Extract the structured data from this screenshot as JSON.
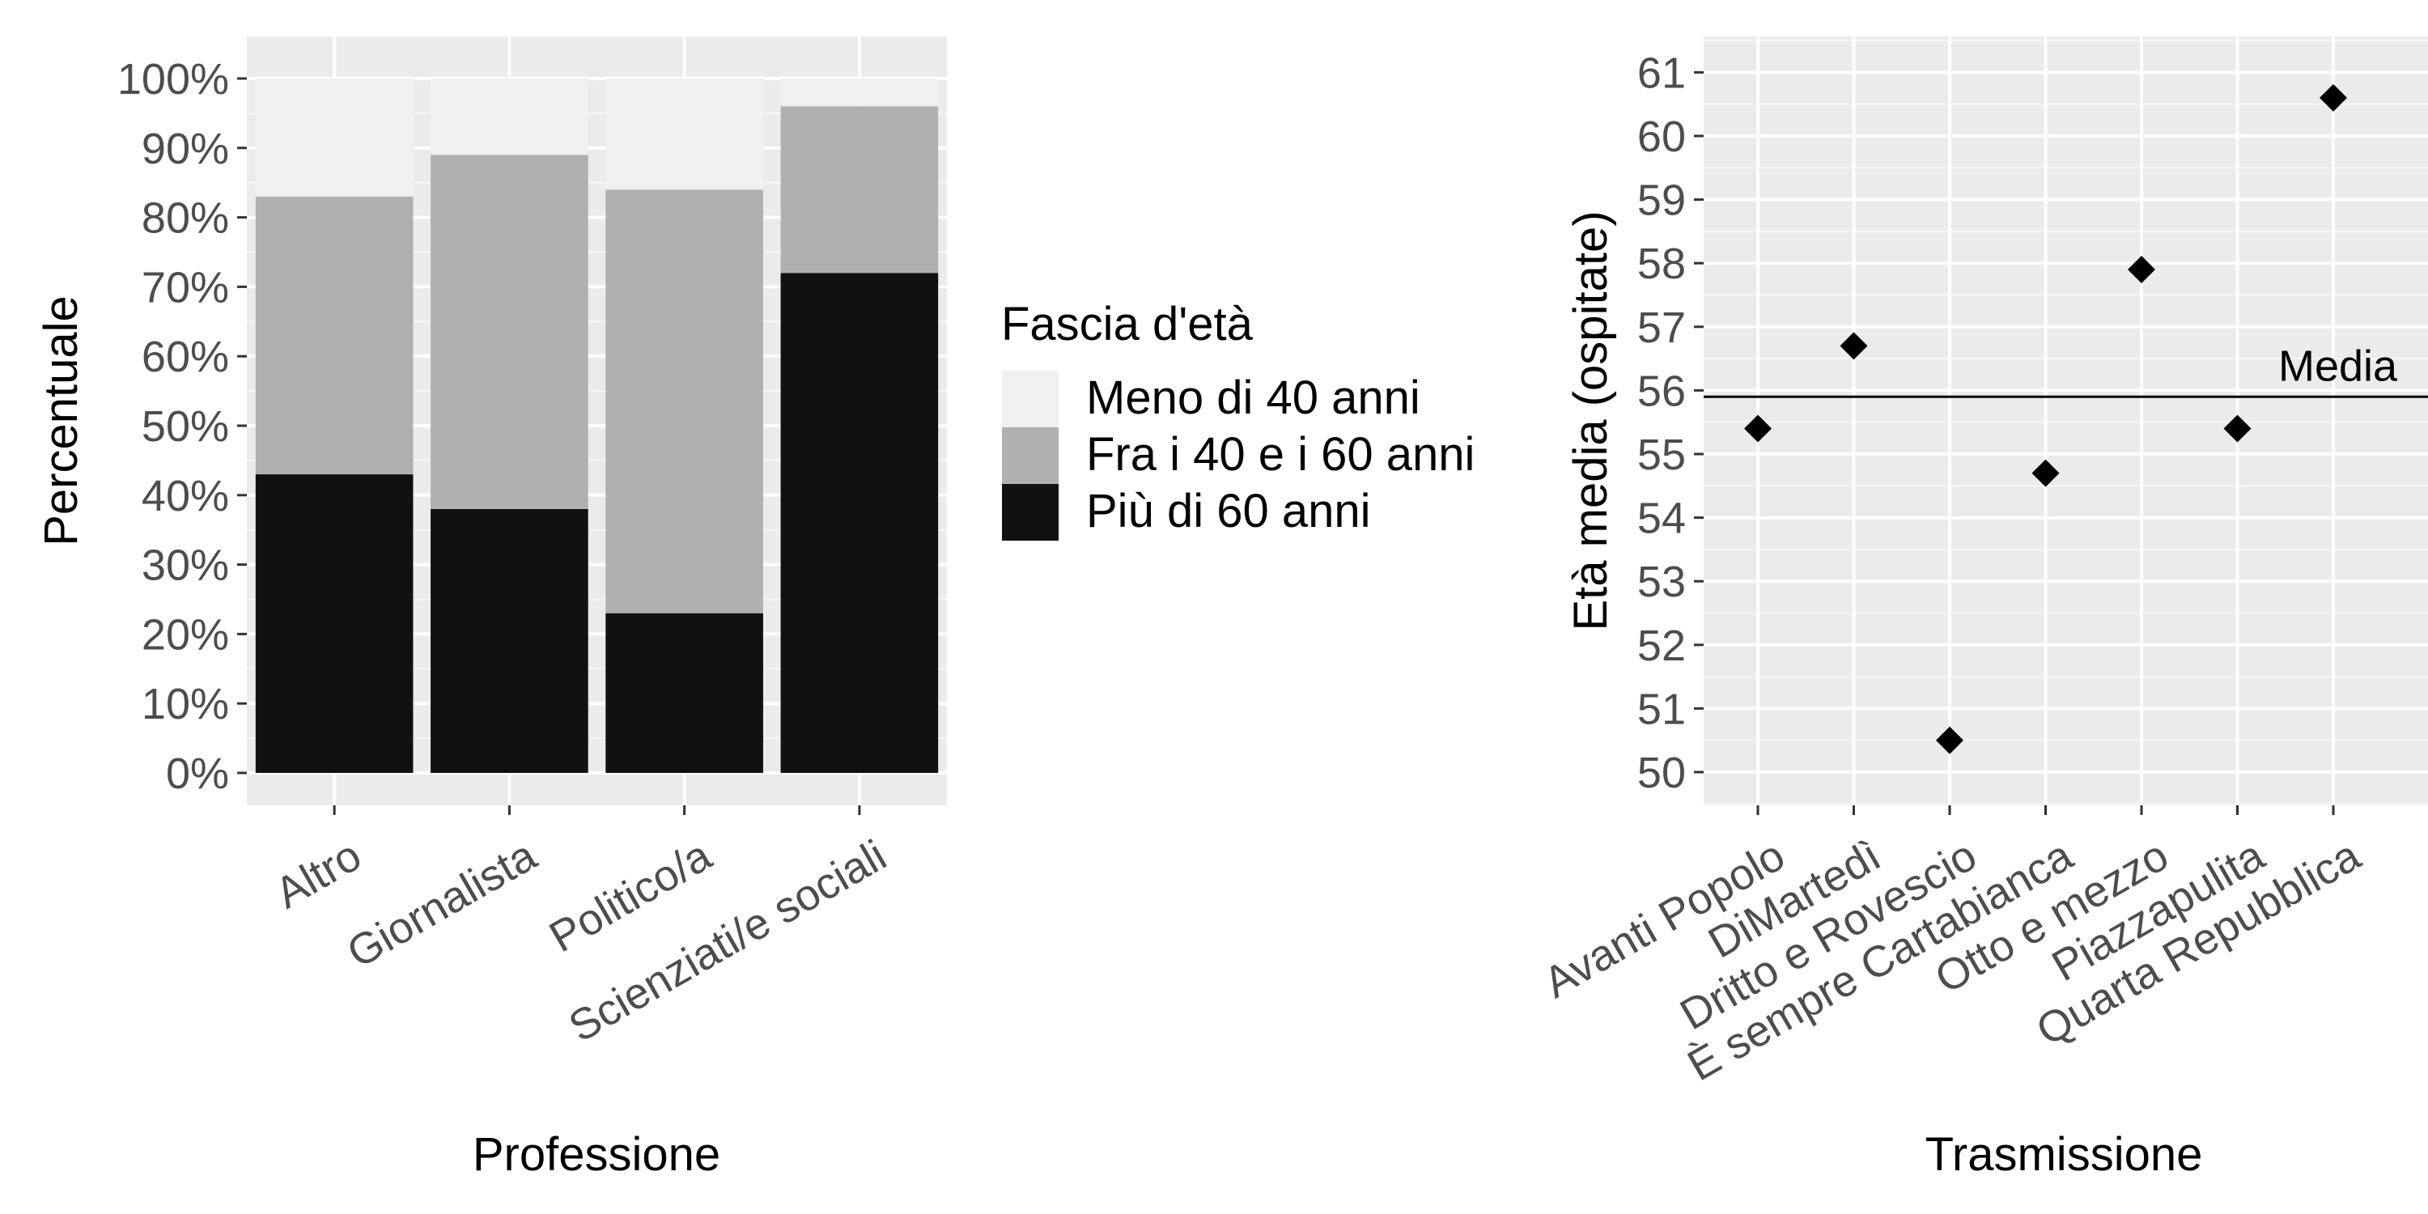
{
  "chart_data": [
    {
      "type": "bar",
      "stacked": true,
      "categories": [
        "Altro",
        "Giornalista",
        "Politico/a",
        "Scienziati/e sociali"
      ],
      "xlabel": "Professione",
      "ylabel": "Percentuale",
      "ylim": [
        0,
        100
      ],
      "y_ticks": [
        "0%",
        "10%",
        "20%",
        "30%",
        "40%",
        "50%",
        "60%",
        "70%",
        "80%",
        "90%",
        "100%"
      ],
      "grid": true,
      "legend": {
        "title": "Fascia d'età",
        "placement": "right"
      },
      "series": [
        {
          "name": "Più di 60 anni",
          "color": "#111111",
          "values": [
            43,
            38,
            23,
            72
          ]
        },
        {
          "name": "Fra i 40 e i 60 anni",
          "color": "#b0b0b0",
          "values": [
            40,
            51,
            61,
            24
          ]
        },
        {
          "name": "Meno di 40 anni",
          "color": "#f0f0f0",
          "values": [
            17,
            11,
            16,
            4
          ]
        }
      ]
    },
    {
      "type": "scatter",
      "categories": [
        "Avanti Popolo",
        "DiMartedì",
        "Dritto e Rovescio",
        "È sempre Cartabianca",
        "Otto e mezzo",
        "Piazzapulita",
        "Quarta Repubblica"
      ],
      "values": [
        55.4,
        56.7,
        50.5,
        54.7,
        57.9,
        55.4,
        60.6
      ],
      "xlabel": "Trasmissione",
      "ylabel": "Età media (ospitate)",
      "ylim": [
        49.5,
        61.5
      ],
      "y_ticks": [
        "50",
        "51",
        "52",
        "53",
        "54",
        "55",
        "56",
        "57",
        "58",
        "59",
        "60",
        "61"
      ],
      "grid": true,
      "marker": "diamond",
      "reference_line": {
        "label": "Media",
        "value": 55.9
      }
    }
  ]
}
